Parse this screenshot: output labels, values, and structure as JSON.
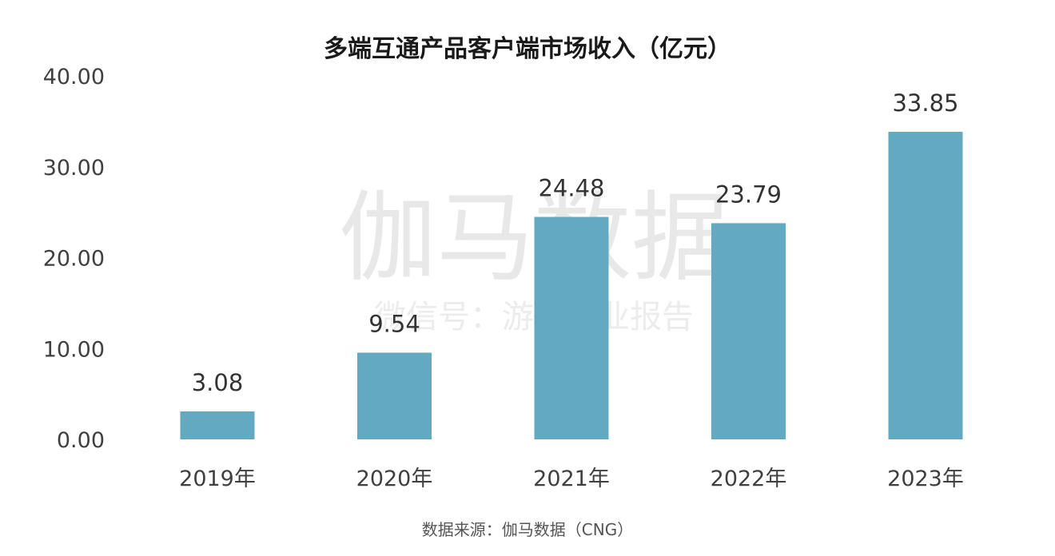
{
  "chart_data": {
    "type": "bar",
    "title": "多端互通产品客户端市场收入（亿元）",
    "categories": [
      "2019年",
      "2020年",
      "2021年",
      "2022年",
      "2023年"
    ],
    "values": [
      3.08,
      9.54,
      24.48,
      23.79,
      33.85
    ],
    "value_labels": [
      "3.08",
      "9.54",
      "24.48",
      "23.79",
      "33.85"
    ],
    "ylim": [
      0,
      40
    ],
    "y_ticks": [
      "0.00",
      "10.00",
      "20.00",
      "30.00",
      "40.00"
    ],
    "xlabel": "",
    "ylabel": "",
    "grid": false,
    "legend": "none",
    "bar_color": "#63a9c2"
  },
  "watermark": {
    "main": "伽马数据",
    "sub": "微信号：游戏产业报告"
  },
  "source": "数据来源：伽马数据（CNG）"
}
